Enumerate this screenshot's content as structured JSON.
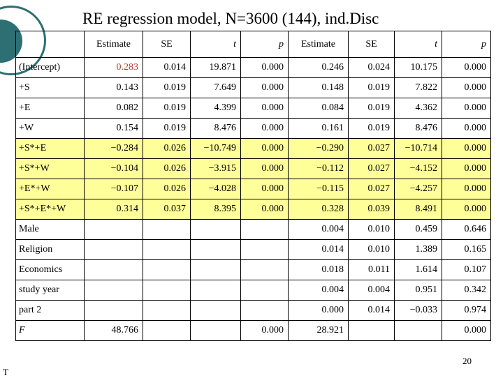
{
  "title": "RE regression model, N=3600 (144), ind.Disc",
  "headers": [
    "Estimate",
    "SE",
    "t",
    "p",
    "Estimate",
    "SE",
    "t",
    "p"
  ],
  "rows": [
    {
      "label": "(Intercept)",
      "cells": [
        "0.283",
        "0.014",
        "19.871",
        "0.000",
        "0.246",
        "0.024",
        "10.175",
        "0.000"
      ]
    },
    {
      "label": "+S",
      "cells": [
        "0.143",
        "0.019",
        "7.649",
        "0.000",
        "0.148",
        "0.019",
        "7.822",
        "0.000"
      ]
    },
    {
      "label": "+E",
      "cells": [
        "0.082",
        "0.019",
        "4.399",
        "0.000",
        "0.084",
        "0.019",
        "4.362",
        "0.000"
      ]
    },
    {
      "label": "+W",
      "cells": [
        "0.154",
        "0.019",
        "8.476",
        "0.000",
        "0.161",
        "0.019",
        "8.476",
        "0.000"
      ]
    },
    {
      "label": "+S*+E",
      "cells": [
        "−0.284",
        "0.026",
        "−10.749",
        "0.000",
        "−0.290",
        "0.027",
        "−10.714",
        "0.000"
      ]
    },
    {
      "label": "+S*+W",
      "cells": [
        "−0.104",
        "0.026",
        "−3.915",
        "0.000",
        "−0.112",
        "0.027",
        "−4.152",
        "0.000"
      ]
    },
    {
      "label": "+E*+W",
      "cells": [
        "−0.107",
        "0.026",
        "−4.028",
        "0.000",
        "−0.115",
        "0.027",
        "−4.257",
        "0.000"
      ]
    },
    {
      "label": "+S*+E*+W",
      "cells": [
        "0.314",
        "0.037",
        "8.395",
        "0.000",
        "0.328",
        "0.039",
        "8.491",
        "0.000"
      ]
    },
    {
      "label": "Male",
      "cells": [
        "",
        "",
        "",
        "",
        "0.004",
        "0.010",
        "0.459",
        "0.646"
      ]
    },
    {
      "label": "Religion",
      "cells": [
        "",
        "",
        "",
        "",
        "0.014",
        "0.010",
        "1.389",
        "0.165"
      ]
    },
    {
      "label": "Economics",
      "cells": [
        "",
        "",
        "",
        "",
        "0.018",
        "0.011",
        "1.614",
        "0.107"
      ]
    },
    {
      "label": "study year",
      "cells": [
        "",
        "",
        "",
        "",
        "0.004",
        "0.004",
        "0.951",
        "0.342"
      ]
    },
    {
      "label": "part 2",
      "cells": [
        "",
        "",
        "",
        "",
        "0.000",
        "0.014",
        "−0.033",
        "0.974"
      ]
    },
    {
      "label": "F",
      "cells": [
        "48.766",
        "",
        "",
        "0.000",
        "28.921",
        "",
        "",
        "0.000"
      ]
    }
  ],
  "page_number": "20",
  "corner_mark": "T",
  "colors": {
    "accent": "#2d6f73",
    "highlight": "#ffff99",
    "intercept_estimate": "#c0392b"
  }
}
